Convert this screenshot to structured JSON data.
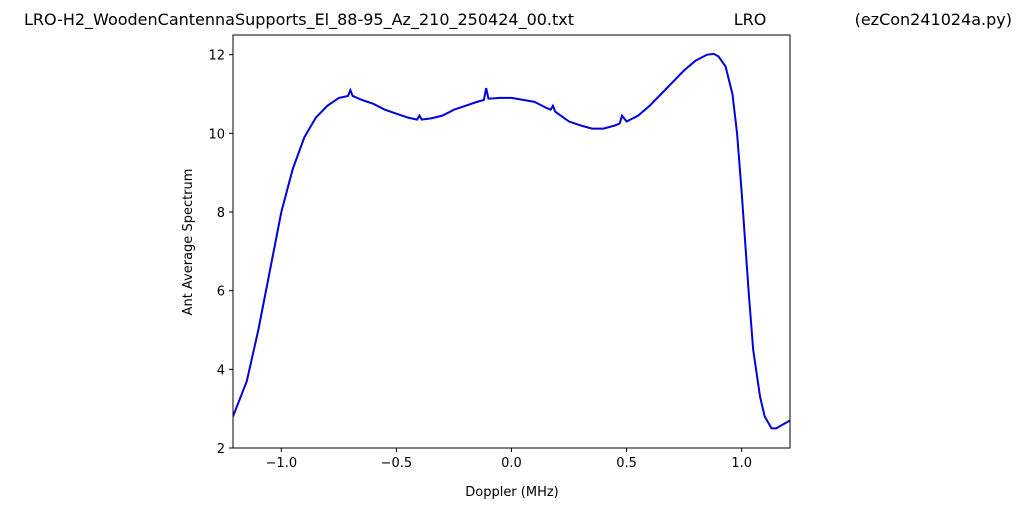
{
  "chart_data": {
    "type": "line",
    "titles": [
      "LRO-H2_WoodenCantennaSupports_El_88-95_Az_210_250424_00.txt",
      "LRO",
      "(ezCon241024a.py)"
    ],
    "xlabel": "Doppler (MHz)",
    "ylabel": "Ant Average Spectrum",
    "xlim": [
      -1.21,
      1.21
    ],
    "ylim": [
      2,
      12.5
    ],
    "xticks": [
      {
        "value": -1.0,
        "label": "−1.0"
      },
      {
        "value": -0.5,
        "label": "−0.5"
      },
      {
        "value": 0,
        "label": "0.0"
      },
      {
        "value": 0.5,
        "label": "0.5"
      },
      {
        "value": 1.0,
        "label": "1.0"
      }
    ],
    "yticks": [
      2,
      4,
      6,
      8,
      10,
      12
    ],
    "x": [
      -1.21,
      -1.15,
      -1.1,
      -1.05,
      -1.0,
      -0.95,
      -0.9,
      -0.85,
      -0.8,
      -0.75,
      -0.71,
      -0.7,
      -0.69,
      -0.65,
      -0.6,
      -0.55,
      -0.5,
      -0.45,
      -0.41,
      -0.4,
      -0.39,
      -0.35,
      -0.3,
      -0.25,
      -0.2,
      -0.15,
      -0.12,
      -0.11,
      -0.1,
      -0.05,
      0.0,
      0.05,
      0.1,
      0.15,
      0.17,
      0.18,
      0.19,
      0.25,
      0.3,
      0.35,
      0.4,
      0.45,
      0.47,
      0.48,
      0.5,
      0.55,
      0.6,
      0.65,
      0.7,
      0.75,
      0.8,
      0.85,
      0.88,
      0.9,
      0.93,
      0.96,
      0.98,
      1.0,
      1.03,
      1.05,
      1.08,
      1.1,
      1.13,
      1.15,
      1.18,
      1.21
    ],
    "series": [
      {
        "color": "#0000dd",
        "values": [
          2.8,
          3.7,
          5.0,
          6.5,
          8.0,
          9.1,
          9.9,
          10.4,
          10.7,
          10.9,
          10.95,
          11.1,
          10.95,
          10.85,
          10.75,
          10.6,
          10.5,
          10.4,
          10.35,
          10.45,
          10.35,
          10.38,
          10.45,
          10.6,
          10.7,
          10.8,
          10.85,
          11.15,
          10.88,
          10.9,
          10.9,
          10.85,
          10.8,
          10.65,
          10.6,
          10.7,
          10.55,
          10.3,
          10.2,
          10.12,
          10.12,
          10.2,
          10.25,
          10.45,
          10.3,
          10.45,
          10.7,
          11.0,
          11.3,
          11.6,
          11.85,
          12.0,
          12.02,
          11.95,
          11.7,
          11.0,
          10.0,
          8.5,
          6.0,
          4.5,
          3.3,
          2.8,
          2.5,
          2.5,
          2.6,
          2.7
        ]
      }
    ]
  }
}
